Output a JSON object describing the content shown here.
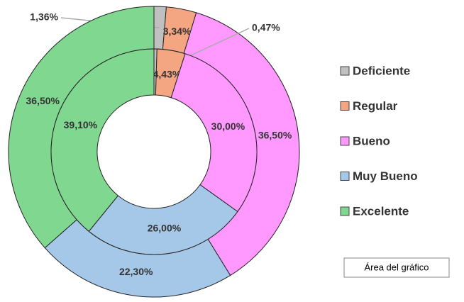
{
  "chart_data": {
    "type": "doughnut",
    "categories": [
      "Deficiente",
      "Regular",
      "Bueno",
      "Muy Bueno",
      "Excelente"
    ],
    "colors": [
      "#c0c0c0",
      "#f4a582",
      "#ff99ff",
      "#a6c8e8",
      "#80d890"
    ],
    "series": [
      {
        "values": [
          1.36,
          3.34,
          36.5,
          22.3,
          36.5
        ],
        "value_labels": [
          "1,36%",
          "3,34%",
          "36,50%",
          "22,30%",
          "36,50%"
        ]
      },
      {
        "values": [
          0.47,
          4.43,
          30.0,
          26.0,
          39.1
        ],
        "value_labels": [
          "0,47%",
          "4,43%",
          "30,00%",
          "26,00%",
          "39,10%"
        ]
      }
    ],
    "legend": "right"
  },
  "tooltip": "Área del gráfico"
}
